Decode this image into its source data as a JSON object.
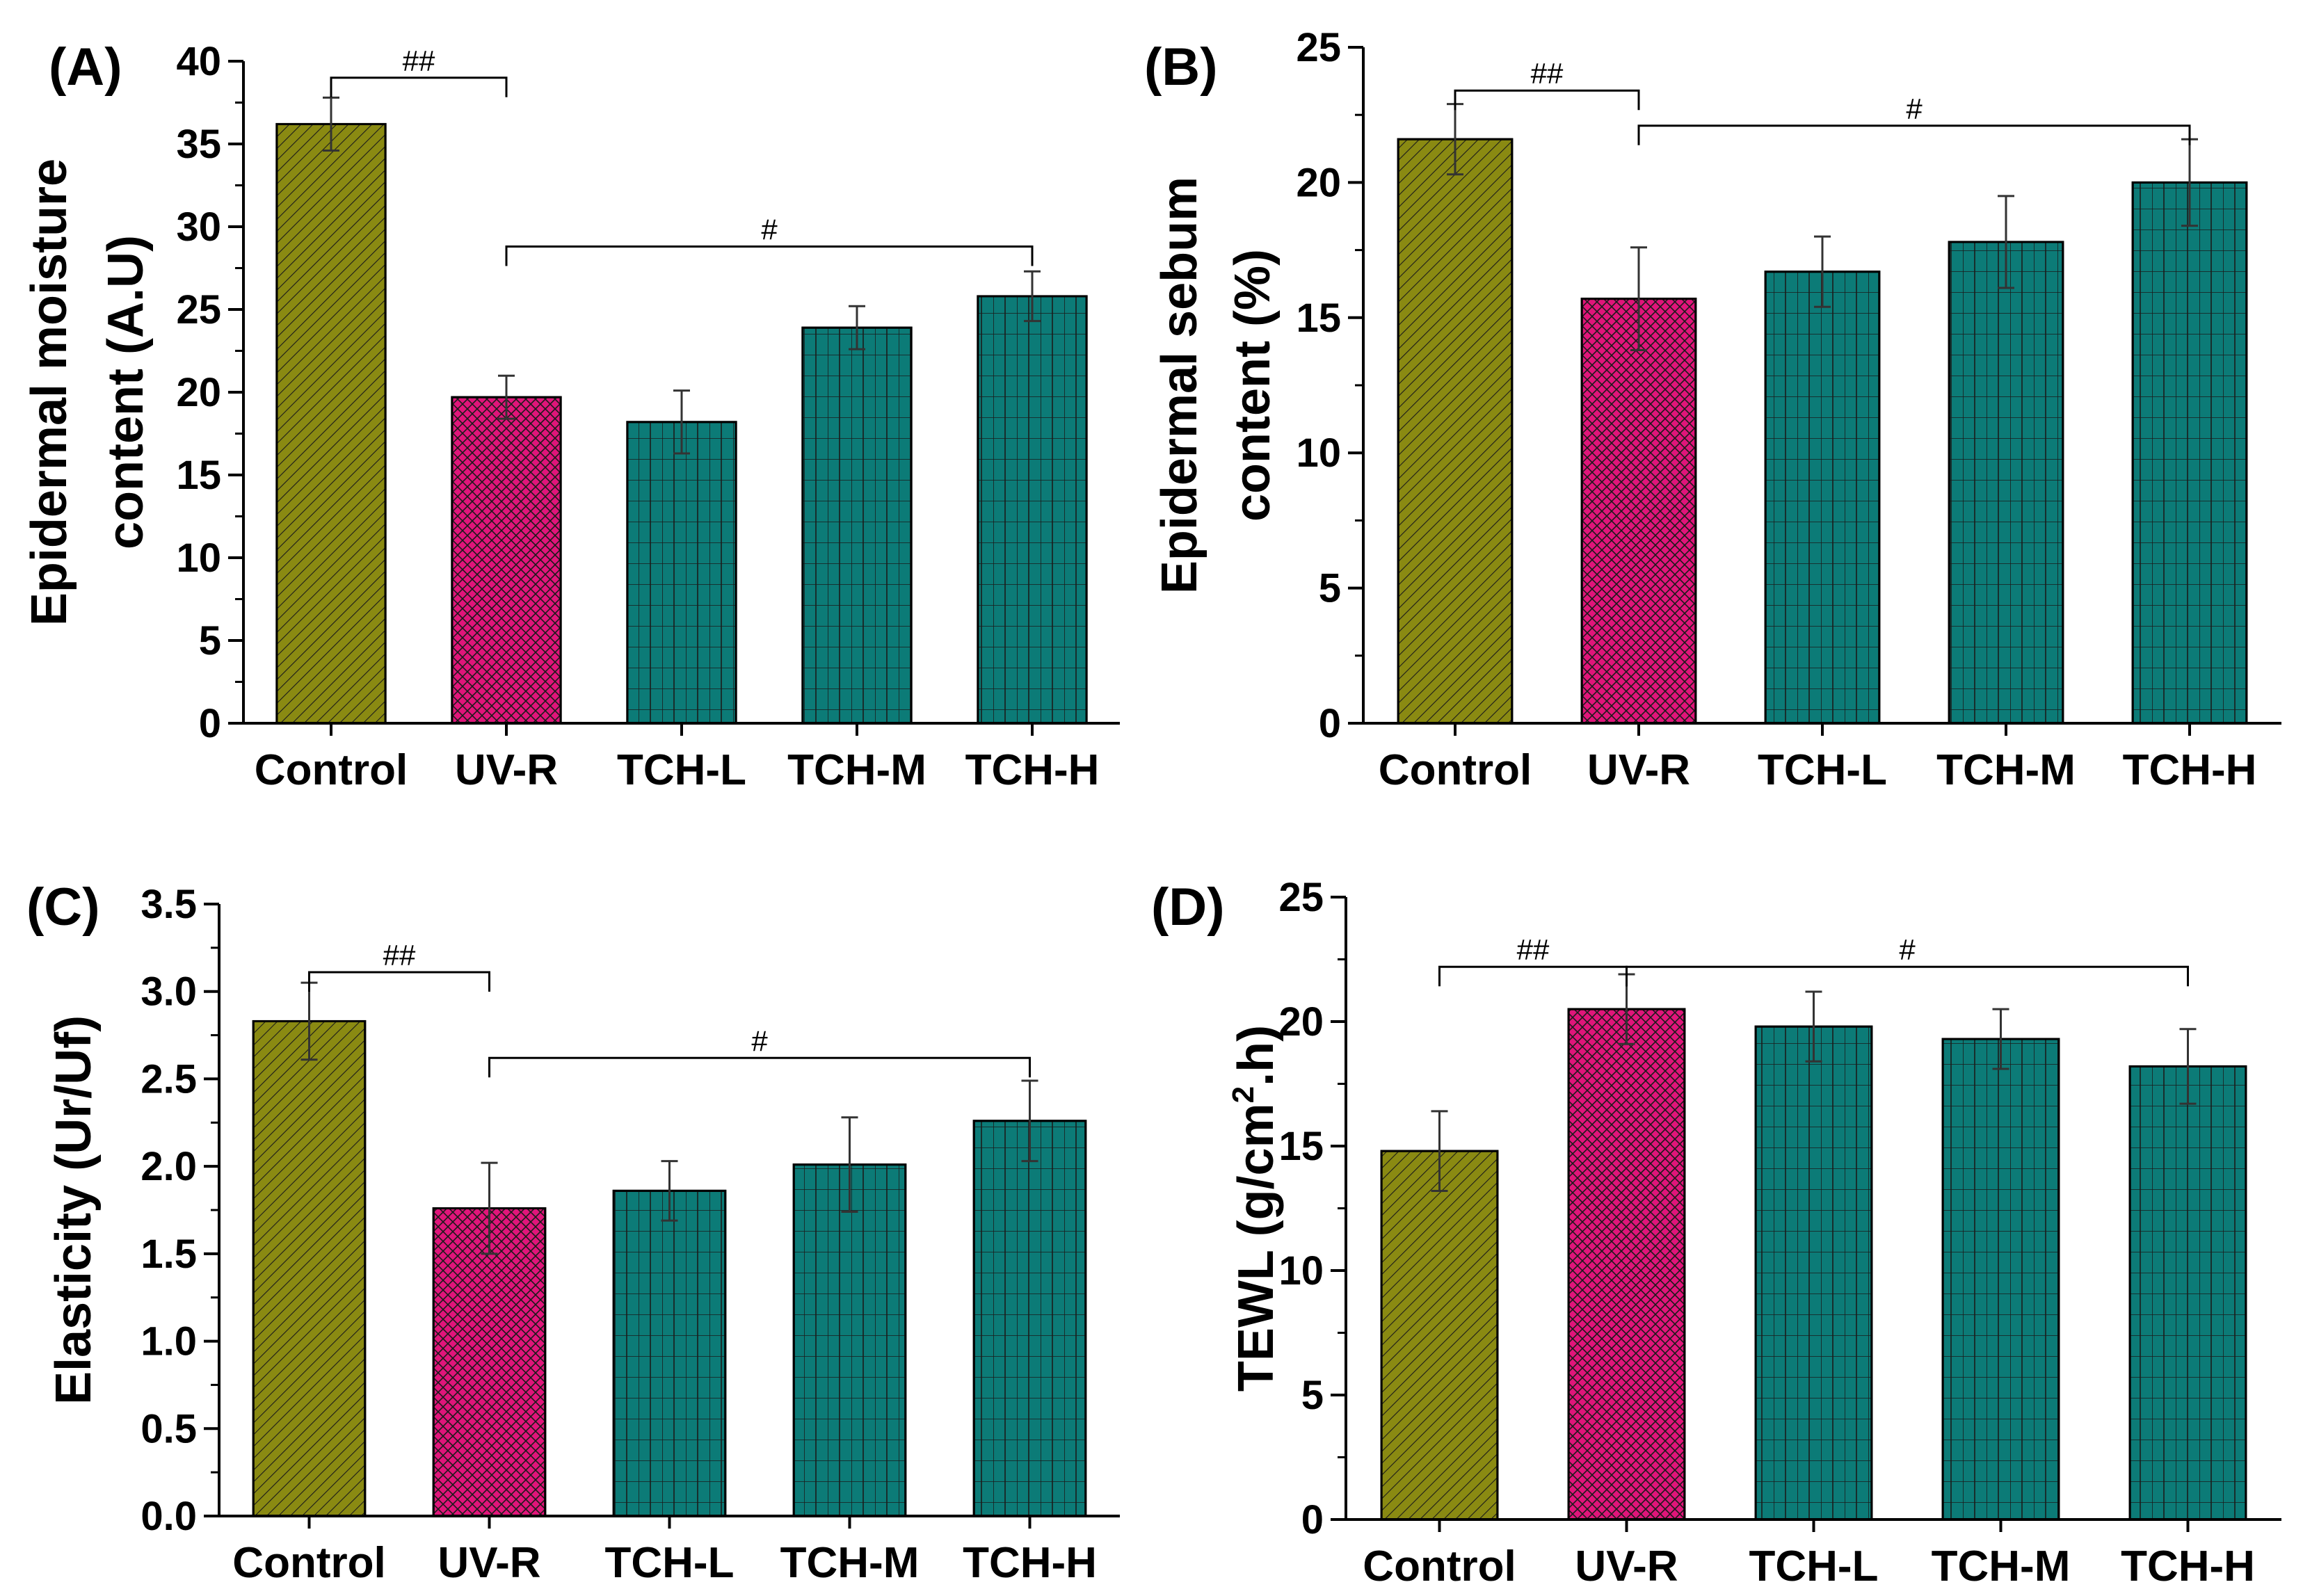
{
  "colors": {
    "control": "#8a8a12",
    "uvr": "#e0157a",
    "tch": "#0c7b77",
    "hatch": "#1a1a1a",
    "axis": "#000000"
  },
  "chart_data": [
    {
      "panel": "(A)",
      "type": "bar",
      "ylabel_lines": [
        "Epidermal moisture",
        "content (A.U)"
      ],
      "categories": [
        "Control",
        "UV-R",
        "TCH-L",
        "TCH-M",
        "TCH-H"
      ],
      "values": [
        36.2,
        19.7,
        18.2,
        23.9,
        25.8
      ],
      "errors": [
        1.6,
        1.3,
        1.9,
        1.3,
        1.5
      ],
      "ylim": [
        0,
        40
      ],
      "yticks": [
        0,
        5,
        10,
        15,
        20,
        25,
        30,
        35,
        40
      ],
      "tick_labels": [
        "0",
        "5",
        "10",
        "15",
        "20",
        "25",
        "30",
        "35",
        "40"
      ],
      "significance": [
        {
          "from": 0,
          "to": 1,
          "label": "##",
          "level": 39
        },
        {
          "from": 1,
          "to": 4,
          "label": "#",
          "level": 28.8
        }
      ]
    },
    {
      "panel": "(B)",
      "type": "bar",
      "ylabel_lines": [
        "Epidermal sebum",
        "content (%)"
      ],
      "categories": [
        "Control",
        "UV-R",
        "TCH-L",
        "TCH-M",
        "TCH-H"
      ],
      "values": [
        21.6,
        15.7,
        16.7,
        17.8,
        20.0
      ],
      "errors": [
        1.3,
        1.9,
        1.3,
        1.7,
        1.6
      ],
      "ylim": [
        0,
        25
      ],
      "yticks": [
        0,
        5,
        10,
        15,
        20,
        25
      ],
      "tick_labels": [
        "0",
        "5",
        "10",
        "15",
        "20",
        "25"
      ],
      "significance": [
        {
          "from": 0,
          "to": 1,
          "label": "##",
          "level": 23.4
        },
        {
          "from": 1,
          "to": 4,
          "label": "#",
          "level": 22.1
        }
      ]
    },
    {
      "panel": "(C)",
      "type": "bar",
      "ylabel_lines": [
        "Elasticity (Ur/Uf)"
      ],
      "categories": [
        "Control",
        "UV-R",
        "TCH-L",
        "TCH-M",
        "TCH-H"
      ],
      "values": [
        2.83,
        1.76,
        1.86,
        2.01,
        2.26
      ],
      "errors": [
        0.22,
        0.26,
        0.17,
        0.27,
        0.23
      ],
      "ylim": [
        0,
        3.5
      ],
      "yticks": [
        0,
        0.5,
        1.0,
        1.5,
        2.0,
        2.5,
        3.0,
        3.5
      ],
      "tick_labels": [
        "0.0",
        "0.5",
        "1.0",
        "1.5",
        "2.0",
        "2.5",
        "3.0",
        "3.5"
      ],
      "significance": [
        {
          "from": 0,
          "to": 1,
          "label": "##",
          "level": 3.11
        },
        {
          "from": 1,
          "to": 4,
          "label": "#",
          "level": 2.62
        }
      ]
    },
    {
      "panel": "(D)",
      "type": "bar",
      "ylabel_lines": [
        "TEWL (g/cm",
        "2",
        ".h)"
      ],
      "categories": [
        "Control",
        "UV-R",
        "TCH-L",
        "TCH-M",
        "TCH-H"
      ],
      "values": [
        14.8,
        20.5,
        19.8,
        19.3,
        18.2
      ],
      "errors": [
        1.6,
        1.4,
        1.4,
        1.2,
        1.5
      ],
      "ylim": [
        0,
        25
      ],
      "yticks": [
        0,
        5,
        10,
        15,
        20,
        25
      ],
      "tick_labels": [
        "0",
        "5",
        "10",
        "15",
        "20",
        "25"
      ],
      "significance": [
        {
          "from": 0,
          "to": 1,
          "label": "##",
          "level": 22.2
        },
        {
          "from": 1,
          "to": 4,
          "label": "#",
          "level": 22.2
        }
      ]
    }
  ]
}
